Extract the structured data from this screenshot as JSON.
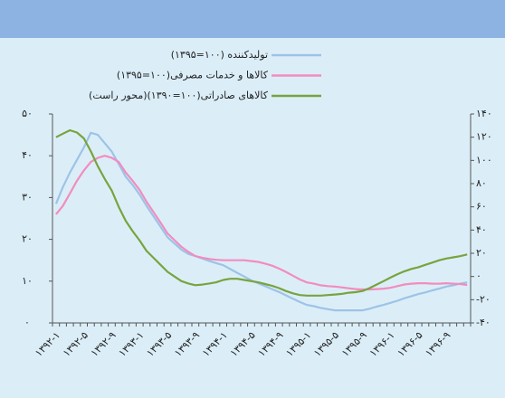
{
  "chart_data": {
    "type": "line",
    "legend": [
      "تولیدکننده (۱۰۰=۱۳۹۵)",
      "کالاها و خدمات مصرفی(۱۰۰=۱۳۹۵)",
      "کالاهای صادراتی(۱۰۰=۱۳۹۰)(محور راست)"
    ],
    "categories": [
      "۱۳۹۲-۱",
      null,
      null,
      null,
      "۱۳۹۲-۵",
      null,
      null,
      null,
      "۱۳۹۲-۹",
      null,
      null,
      null,
      "۱۳۹۳-۱",
      null,
      null,
      null,
      "۱۳۹۳-۵",
      null,
      null,
      null,
      "۱۳۹۳-۹",
      null,
      null,
      null,
      "۱۳۹۴-۱",
      null,
      null,
      null,
      "۱۳۹۴-۵",
      null,
      null,
      null,
      "۱۳۹۴-۹",
      null,
      null,
      null,
      "۱۳۹۵-۱",
      null,
      null,
      null,
      "۱۳۹۵-۵",
      null,
      null,
      null,
      "۱۳۹۵-۹",
      null,
      null,
      null,
      "۱۳۹۶-۱",
      null,
      null,
      null,
      "۱۳۹۶-۵",
      null,
      null,
      null,
      "۱۳۹۶-۹",
      null,
      null,
      null
    ],
    "series": [
      {
        "name": "تولیدکننده (۱۰۰=۱۳۹۵)",
        "color": "#9dc3e6",
        "values": [
          28.5,
          32.5,
          36,
          39,
          42,
          45.5,
          45,
          43,
          41,
          38,
          35,
          33,
          30.7,
          28,
          25.5,
          23,
          20.5,
          19,
          17.5,
          16.5,
          16,
          15.4,
          14.8,
          14.3,
          13.8,
          12.9,
          12,
          11.1,
          10.2,
          9.5,
          8.8,
          8.1,
          7.4,
          6.6,
          5.8,
          5,
          4.3,
          4,
          3.6,
          3.3,
          3,
          3,
          3,
          3,
          3,
          3.4,
          3.9,
          4.3,
          4.8,
          5.3,
          5.9,
          6.4,
          6.9,
          7.3,
          7.8,
          8.2,
          8.7,
          9,
          9.4,
          9.7
        ]
      },
      {
        "name": "کالاها و خدمات مصرفی(۱۰۰=۱۳۹۵)",
        "color": "#f28cbf",
        "values": [
          26,
          28,
          31,
          34,
          36.5,
          38.5,
          39.5,
          40,
          39.5,
          38.5,
          36,
          34,
          31.8,
          29,
          26.5,
          24,
          21.4,
          19.8,
          18.2,
          17,
          16,
          15.6,
          15.3,
          15.1,
          15,
          15,
          15,
          15,
          14.8,
          14.6,
          14.2,
          13.7,
          13,
          12.2,
          11.3,
          10.4,
          9.7,
          9.4,
          9,
          8.8,
          8.7,
          8.5,
          8.3,
          8.1,
          8,
          8,
          8.1,
          8.2,
          8.4,
          8.8,
          9.2,
          9.4,
          9.5,
          9.5,
          9.4,
          9.4,
          9.5,
          9.4,
          9.3,
          9.1
        ]
      },
      {
        "name": "کالاهای صادراتی(۱۰۰=۱۳۹۰)(محور راست)",
        "color": "#77a43e",
        "axis": "y2",
        "values": [
          120,
          123,
          126,
          124,
          119,
          108,
          95,
          84,
          74,
          60,
          48,
          39,
          31,
          22,
          16,
          10,
          4,
          0,
          -4,
          -6,
          -7.5,
          -7,
          -6,
          -5,
          -3,
          -2,
          -2,
          -3,
          -4,
          -5,
          -6.5,
          -8,
          -10,
          -12.5,
          -14.5,
          -16,
          -16.5,
          -16.5,
          -16.5,
          -16,
          -15.5,
          -15,
          -14,
          -13.5,
          -12.5,
          -10,
          -7,
          -4,
          -1,
          2,
          4.5,
          6.5,
          8,
          10,
          12,
          14,
          15.5,
          16.5,
          17.5,
          19
        ]
      }
    ],
    "ylim": [
      0,
      50
    ],
    "yticks": [
      {
        "value": 0,
        "label": "۰"
      },
      {
        "value": 10,
        "label": "۱۰"
      },
      {
        "value": 20,
        "label": "۲۰"
      },
      {
        "value": 30,
        "label": "۳۰"
      },
      {
        "value": 40,
        "label": "۴۰"
      },
      {
        "value": 50,
        "label": "۵۰"
      }
    ],
    "y2lim": [
      -40,
      140
    ],
    "y2ticks": [
      {
        "value": -40,
        "label": "-۴۰"
      },
      {
        "value": -20,
        "label": "-۲۰"
      },
      {
        "value": 0,
        "label": "۰"
      },
      {
        "value": 20,
        "label": "۲۰"
      },
      {
        "value": 40,
        "label": "۴۰"
      },
      {
        "value": 60,
        "label": "۶۰"
      },
      {
        "value": 80,
        "label": "۸۰"
      },
      {
        "value": 100,
        "label": "۱۰۰"
      },
      {
        "value": 120,
        "label": "۱۲۰"
      },
      {
        "value": 140,
        "label": "۱۴۰"
      }
    ],
    "grid": false
  }
}
